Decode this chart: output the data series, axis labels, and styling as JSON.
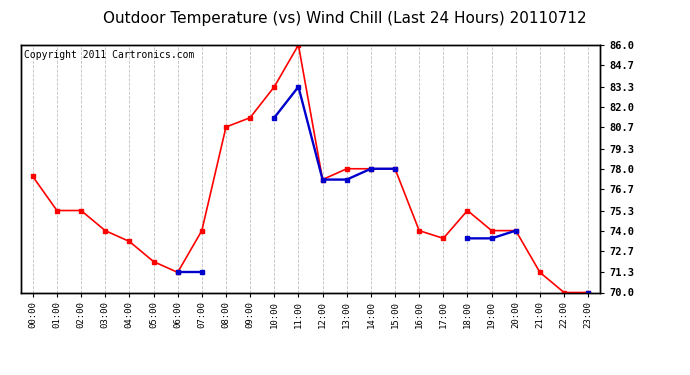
{
  "title": "Outdoor Temperature (vs) Wind Chill (Last 24 Hours) 20110712",
  "copyright": "Copyright 2011 Cartronics.com",
  "hours": [
    "00:00",
    "01:00",
    "02:00",
    "03:00",
    "04:00",
    "05:00",
    "06:00",
    "07:00",
    "08:00",
    "09:00",
    "10:00",
    "11:00",
    "12:00",
    "13:00",
    "14:00",
    "15:00",
    "16:00",
    "17:00",
    "18:00",
    "19:00",
    "20:00",
    "21:00",
    "22:00",
    "23:00"
  ],
  "temp": [
    77.5,
    75.3,
    75.3,
    74.0,
    73.3,
    72.0,
    71.3,
    74.0,
    80.7,
    81.3,
    83.3,
    86.0,
    77.3,
    78.0,
    78.0,
    78.0,
    74.0,
    73.5,
    75.3,
    74.0,
    74.0,
    71.3,
    70.0,
    70.0
  ],
  "windchill": [
    null,
    null,
    null,
    null,
    null,
    null,
    71.3,
    71.3,
    null,
    null,
    81.3,
    83.3,
    77.3,
    77.3,
    78.0,
    78.0,
    null,
    null,
    73.5,
    73.5,
    74.0,
    null,
    null,
    70.0
  ],
  "temp_color": "#ff0000",
  "windchill_color": "#0000cc",
  "bg_color": "#ffffff",
  "plot_bg_color": "#ffffff",
  "grid_color": "#c0c0c0",
  "ylim": [
    70.0,
    86.0
  ],
  "yticks": [
    70.0,
    71.3,
    72.7,
    74.0,
    75.3,
    76.7,
    78.0,
    79.3,
    80.7,
    82.0,
    83.3,
    84.7,
    86.0
  ],
  "title_fontsize": 11,
  "copyright_fontsize": 7,
  "marker": "s",
  "markersize": 3,
  "linewidth": 1.2
}
